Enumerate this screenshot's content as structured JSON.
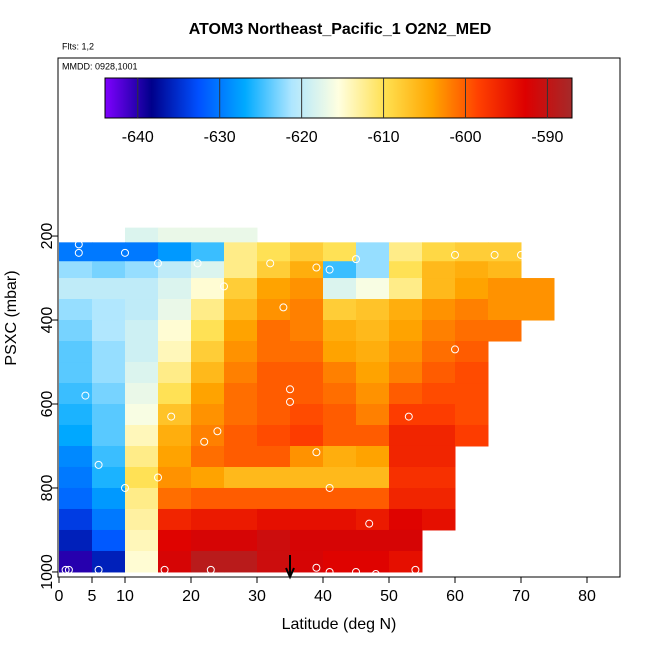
{
  "chart_data": {
    "type": "heatmap",
    "title": "ATOM3 Northeast_Pacific_1 O2N2_MED",
    "subtitle": "Flts: 1,2",
    "annotation": "MMDD: 0928,1001",
    "xlabel": "Latitude (deg N)",
    "ylabel": "PSXC (mbar)",
    "xlim": [
      0,
      85
    ],
    "xticks": [
      0,
      5,
      10,
      20,
      30,
      40,
      50,
      60,
      70,
      80
    ],
    "ylim": [
      1012,
      -224
    ],
    "yticks": [
      200,
      400,
      600,
      800,
      1000
    ],
    "clim": [
      -644,
      -587
    ],
    "cticks": [
      -640,
      -630,
      -620,
      -610,
      -600,
      -590
    ],
    "colormap": [
      "#7f00ff",
      "#00008b",
      "#0050ff",
      "#00aaff",
      "#aee6ff",
      "#ffffe0",
      "#ffe050",
      "#ffa500",
      "#ff4000",
      "#dd0000",
      "#a52a2a"
    ],
    "lat_edges": [
      0,
      5,
      10,
      15,
      20,
      25,
      30,
      35,
      40,
      45,
      50,
      55,
      60,
      65,
      70,
      75
    ],
    "p_edges": [
      180,
      215,
      260,
      300,
      350,
      400,
      450,
      500,
      550,
      600,
      650,
      700,
      750,
      800,
      850,
      900,
      950,
      1000
    ],
    "rows": [
      [
        null,
        null,
        -618,
        -617,
        -617,
        -617,
        null,
        null,
        null,
        null,
        null,
        null,
        null,
        null,
        null
      ],
      [
        -630,
        -630,
        -630,
        -628,
        -625,
        -612,
        -610,
        -608,
        -610,
        -622,
        -612,
        -609,
        -608,
        -608,
        null
      ],
      [
        -622,
        -623,
        -622,
        -620,
        -618,
        -612,
        -608,
        -605,
        -625,
        -622,
        -610,
        -606,
        -605,
        -606,
        null
      ],
      [
        -620,
        -620,
        -620,
        -618,
        -615,
        -608,
        -604,
        -603,
        -618,
        -616,
        -612,
        -606,
        -604,
        -603,
        -603
      ],
      [
        -622,
        -621,
        -620,
        -617,
        -612,
        -606,
        -603,
        -602,
        -608,
        -607,
        -605,
        -603,
        -602,
        -603,
        -603
      ],
      [
        -623,
        -621,
        -619,
        -615,
        -610,
        -604,
        -601,
        -602,
        -605,
        -606,
        -604,
        -602,
        -601,
        -601,
        null
      ],
      [
        -624,
        -622,
        -619,
        -614,
        -608,
        -603,
        -601,
        -601,
        -604,
        -605,
        -603,
        -601,
        -600,
        null,
        null
      ],
      [
        -624,
        -622,
        -618,
        -612,
        -606,
        -602,
        -600,
        -600,
        -602,
        -604,
        -602,
        -600,
        -599,
        null,
        null
      ],
      [
        -625,
        -623,
        -617,
        -610,
        -604,
        -601,
        -600,
        -600,
        -601,
        -603,
        -600,
        -599,
        -599,
        null,
        null
      ],
      [
        -626,
        -624,
        -616,
        -607,
        -603,
        -601,
        -600,
        -599,
        -600,
        -602,
        -598,
        -598,
        -599,
        null,
        null
      ],
      [
        -627,
        -624,
        -614,
        -605,
        -602,
        -600,
        -599,
        -598,
        -600,
        -600,
        -596,
        -596,
        -598,
        null,
        null
      ],
      [
        -629,
        -625,
        -612,
        -604,
        -601,
        -600,
        -600,
        -603,
        -605,
        -604,
        -596,
        -596,
        null,
        null,
        null
      ],
      [
        -630,
        -626,
        -610,
        -603,
        -604,
        -606,
        -606,
        -606,
        -606,
        -606,
        -597,
        -597,
        null,
        null,
        null
      ],
      [
        -631,
        -628,
        -612,
        -601,
        -600,
        -600,
        -600,
        -600,
        -600,
        -600,
        -596,
        -596,
        null,
        null,
        null
      ],
      [
        -634,
        -630,
        -613,
        -596,
        -595,
        -595,
        -594,
        -594,
        -594,
        -595,
        -593,
        -594,
        null,
        null,
        null
      ],
      [
        -636,
        -632,
        -614,
        -593,
        -592,
        -592,
        -591,
        -592,
        -592,
        -592,
        -592,
        null,
        null,
        null,
        null
      ],
      [
        -640,
        -636,
        -615,
        -592,
        -589,
        -589,
        -591,
        -592,
        -593,
        -593,
        -594,
        null,
        null,
        null,
        null
      ]
    ],
    "points": {
      "lat": [
        1,
        1.5,
        3,
        3,
        6,
        10,
        15,
        21,
        16,
        23,
        17,
        22,
        10,
        6,
        4,
        24,
        15,
        32,
        34,
        35,
        35,
        39,
        41,
        39,
        41,
        39,
        41,
        45,
        53,
        47,
        45,
        48,
        54,
        60,
        60,
        66,
        70,
        25
      ],
      "p": [
        995,
        995,
        240,
        220,
        995,
        240,
        265,
        265,
        995,
        995,
        630,
        690,
        800,
        745,
        580,
        665,
        775,
        265,
        370,
        565,
        595,
        275,
        280,
        715,
        800,
        990,
        1000,
        255,
        630,
        885,
        1000,
        1005,
        995,
        470,
        245,
        245,
        245,
        320
      ]
    },
    "marker_lat": 35
  }
}
